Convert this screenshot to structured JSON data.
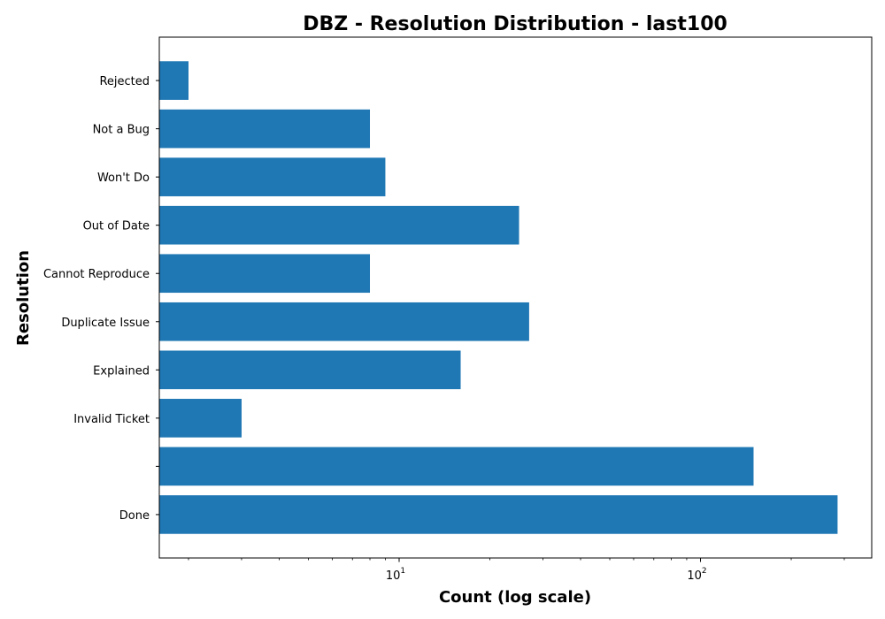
{
  "chart_data": {
    "type": "bar",
    "orientation": "horizontal",
    "title": "DBZ - Resolution Distribution - last100",
    "xlabel": "Count (log scale)",
    "ylabel": "Resolution",
    "x_scale": "log",
    "xlim": [
      1.6,
      370
    ],
    "x_major_ticks": [
      {
        "base": "10",
        "exp": "1",
        "value": 10
      },
      {
        "base": "10",
        "exp": "2",
        "value": 100
      }
    ],
    "categories": [
      "Done",
      "",
      "Invalid Ticket",
      "Explained",
      "Duplicate Issue",
      "Cannot Reproduce",
      "Out of Date",
      "Won't Do",
      "Not a Bug",
      "Rejected"
    ],
    "values": [
      285,
      150,
      3,
      16,
      27,
      8,
      25,
      9,
      8,
      2
    ],
    "bar_color": "#1f77b4",
    "grid": false
  }
}
